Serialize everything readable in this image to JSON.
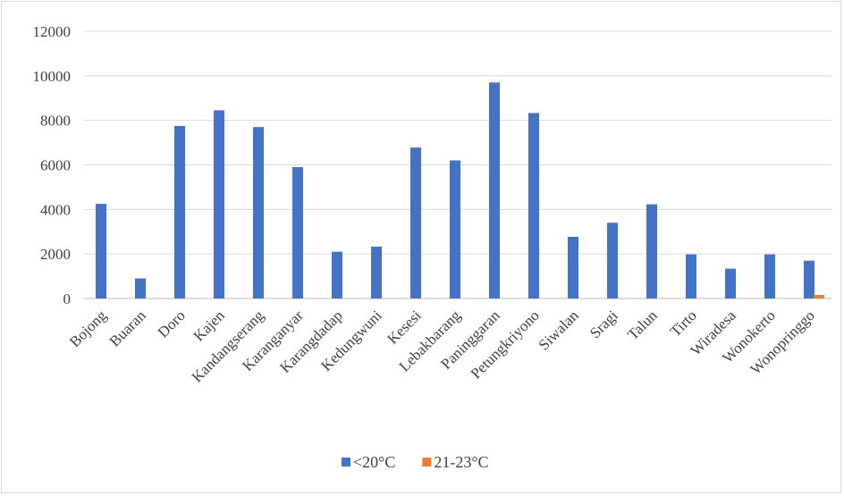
{
  "chart_data": {
    "type": "bar",
    "title": "",
    "xlabel": "",
    "ylabel": "",
    "ylim": [
      0,
      12000
    ],
    "yticks": [
      0,
      2000,
      4000,
      6000,
      8000,
      10000,
      12000
    ],
    "grid": true,
    "legend_position": "bottom",
    "categories": [
      "Bojong",
      "Buaran",
      "Doro",
      "Kajen",
      "Kandangserang",
      "Karanganyar",
      "Karangdadap",
      "Kedungwuni",
      "Kesesi",
      "Lebakbarang",
      "Paninggaran",
      "Petungkriyono",
      "Siwalan",
      "Sragi",
      "Talun",
      "Tirto",
      "Wiradesa",
      "Wonokerto",
      "Wonopringgo"
    ],
    "series": [
      {
        "name": "<20°C",
        "color": "#4472c4",
        "values": [
          4250,
          900,
          7750,
          8450,
          7700,
          5900,
          2100,
          2330,
          6780,
          6200,
          9700,
          8330,
          2770,
          3400,
          4230,
          1980,
          1340,
          1980,
          1700
        ]
      },
      {
        "name": "21-23°C",
        "color": "#ed7d31",
        "values": [
          0,
          0,
          0,
          0,
          0,
          0,
          0,
          0,
          0,
          0,
          0,
          0,
          0,
          0,
          0,
          0,
          0,
          0,
          160
        ]
      }
    ]
  }
}
